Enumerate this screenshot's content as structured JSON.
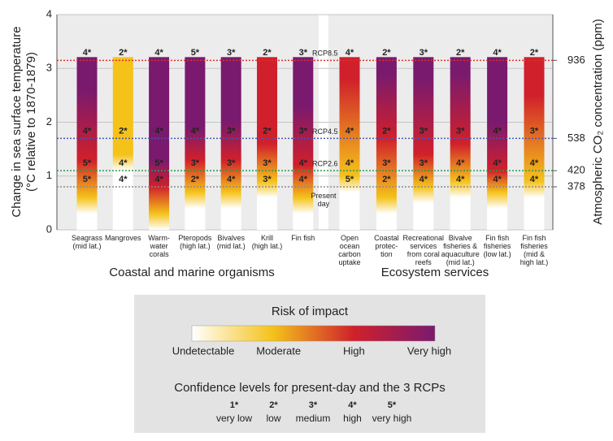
{
  "chart_data": {
    "type": "risk-bar",
    "y_label": [
      "Change in sea surface temperature",
      "(°C relative to 1870-1879)"
    ],
    "y2_label": "Atmospheric CO₂ concentration (ppm)",
    "ylim": [
      0,
      4
    ],
    "yticks": [
      0,
      1,
      2,
      3,
      4
    ],
    "grid": true,
    "groups": [
      "Coastal and marine organisms",
      "Ecosystem services"
    ],
    "scenarios": [
      {
        "name": "RCP8.5",
        "temperature": 3.15,
        "co2": 936,
        "color": "#e0302a"
      },
      {
        "name": "RCP4.5",
        "temperature": 1.7,
        "co2": 538,
        "color": "#4a55b8"
      },
      {
        "name": "RCP2.6",
        "temperature": 1.1,
        "co2": 420,
        "color": "#2a9a4a"
      },
      {
        "name": "Present day",
        "temperature": 0.8,
        "co2": 378,
        "color": "#8a8a8a"
      }
    ],
    "columns": [
      {
        "label": [
          "Seagrass",
          "(mid lat.)"
        ],
        "group": 0,
        "risk_transitions": [
          0.6,
          1.3,
          2.6
        ],
        "confidence": [
          "4*",
          "4*",
          "5*",
          "5*"
        ]
      },
      {
        "label": [
          "Mangroves"
        ],
        "group": 0,
        "risk_transitions": [
          1.4,
          null,
          null
        ],
        "confidence": [
          "2*",
          "2*",
          "4*",
          "4*"
        ]
      },
      {
        "label": [
          "Warm-",
          "water",
          "corals"
        ],
        "group": 0,
        "risk_transitions": [
          0.3,
          0.8,
          1.3
        ],
        "confidence": [
          "4*",
          "4*",
          "5*",
          "4*"
        ]
      },
      {
        "label": [
          "Pteropods",
          "(high lat.)"
        ],
        "group": 0,
        "risk_transitions": [
          0.7,
          1.3,
          1.9
        ],
        "confidence": [
          "5*",
          "4*",
          "3*",
          "2*"
        ]
      },
      {
        "label": [
          "Bivalves",
          "(mid lat.)"
        ],
        "group": 0,
        "risk_transitions": [
          0.7,
          1.3,
          2.0
        ],
        "confidence": [
          "3*",
          "3*",
          "3*",
          "4*"
        ]
      },
      {
        "label": [
          "Krill",
          "(high lat.)"
        ],
        "group": 0,
        "risk_transitions": [
          0.9,
          1.6,
          null
        ],
        "confidence": [
          "2*",
          "2*",
          "3*",
          "3*"
        ]
      },
      {
        "label": [
          "Fin fish"
        ],
        "group": 0,
        "risk_transitions": [
          0.6,
          1.2,
          2.3
        ],
        "confidence": [
          "3*",
          "3*",
          "4*",
          "4*"
        ]
      },
      {
        "label": [
          "Open",
          "ocean",
          "carbon",
          "uptake"
        ],
        "group": 1,
        "risk_transitions": [
          1.0,
          2.8,
          null
        ],
        "confidence": [
          "4*",
          "4*",
          "4*",
          "5*"
        ]
      },
      {
        "label": [
          "Coastal",
          "protec-",
          "tion"
        ],
        "group": 1,
        "risk_transitions": [
          0.6,
          1.7,
          2.9
        ],
        "confidence": [
          "2*",
          "2*",
          "3*",
          "2*"
        ]
      },
      {
        "label": [
          "Recreational",
          "services",
          "from coral",
          "reefs"
        ],
        "group": 1,
        "risk_transitions": [
          0.8,
          1.4,
          2.8
        ],
        "confidence": [
          "3*",
          "3*",
          "3*",
          "4*"
        ]
      },
      {
        "label": [
          "Bivalve",
          "fisheries &",
          "aquaculture",
          "(mid lat.)"
        ],
        "group": 1,
        "risk_transitions": [
          0.9,
          1.6,
          2.9
        ],
        "confidence": [
          "2*",
          "3*",
          "4*",
          "4*"
        ]
      },
      {
        "label": [
          "Fin fish",
          "fisheries",
          "(low lat.)"
        ],
        "group": 1,
        "risk_transitions": [
          0.7,
          1.1,
          2.0
        ],
        "confidence": [
          "4*",
          "4*",
          "4*",
          "4*"
        ]
      },
      {
        "label": [
          "Fin fish",
          "fisheries",
          "(mid &",
          "high lat.)"
        ],
        "group": 1,
        "risk_transitions": [
          0.9,
          2.5,
          null
        ],
        "confidence": [
          "2*",
          "3*",
          "4*",
          "4*"
        ]
      }
    ],
    "legend": {
      "title": "Risk of impact",
      "levels": [
        "Undetectable",
        "Moderate",
        "High",
        "Very high"
      ],
      "colors": [
        "#ffffff",
        "#f5c21a",
        "#d0202b",
        "#7a1a6e"
      ],
      "confidence_title": "Confidence levels for present-day and the 3 RCPs",
      "confidence_levels": [
        {
          "symbol": "1*",
          "label": "very low"
        },
        {
          "symbol": "2*",
          "label": "low"
        },
        {
          "symbol": "3*",
          "label": "medium"
        },
        {
          "symbol": "4*",
          "label": "high"
        },
        {
          "symbol": "5*",
          "label": "very high"
        }
      ]
    }
  }
}
